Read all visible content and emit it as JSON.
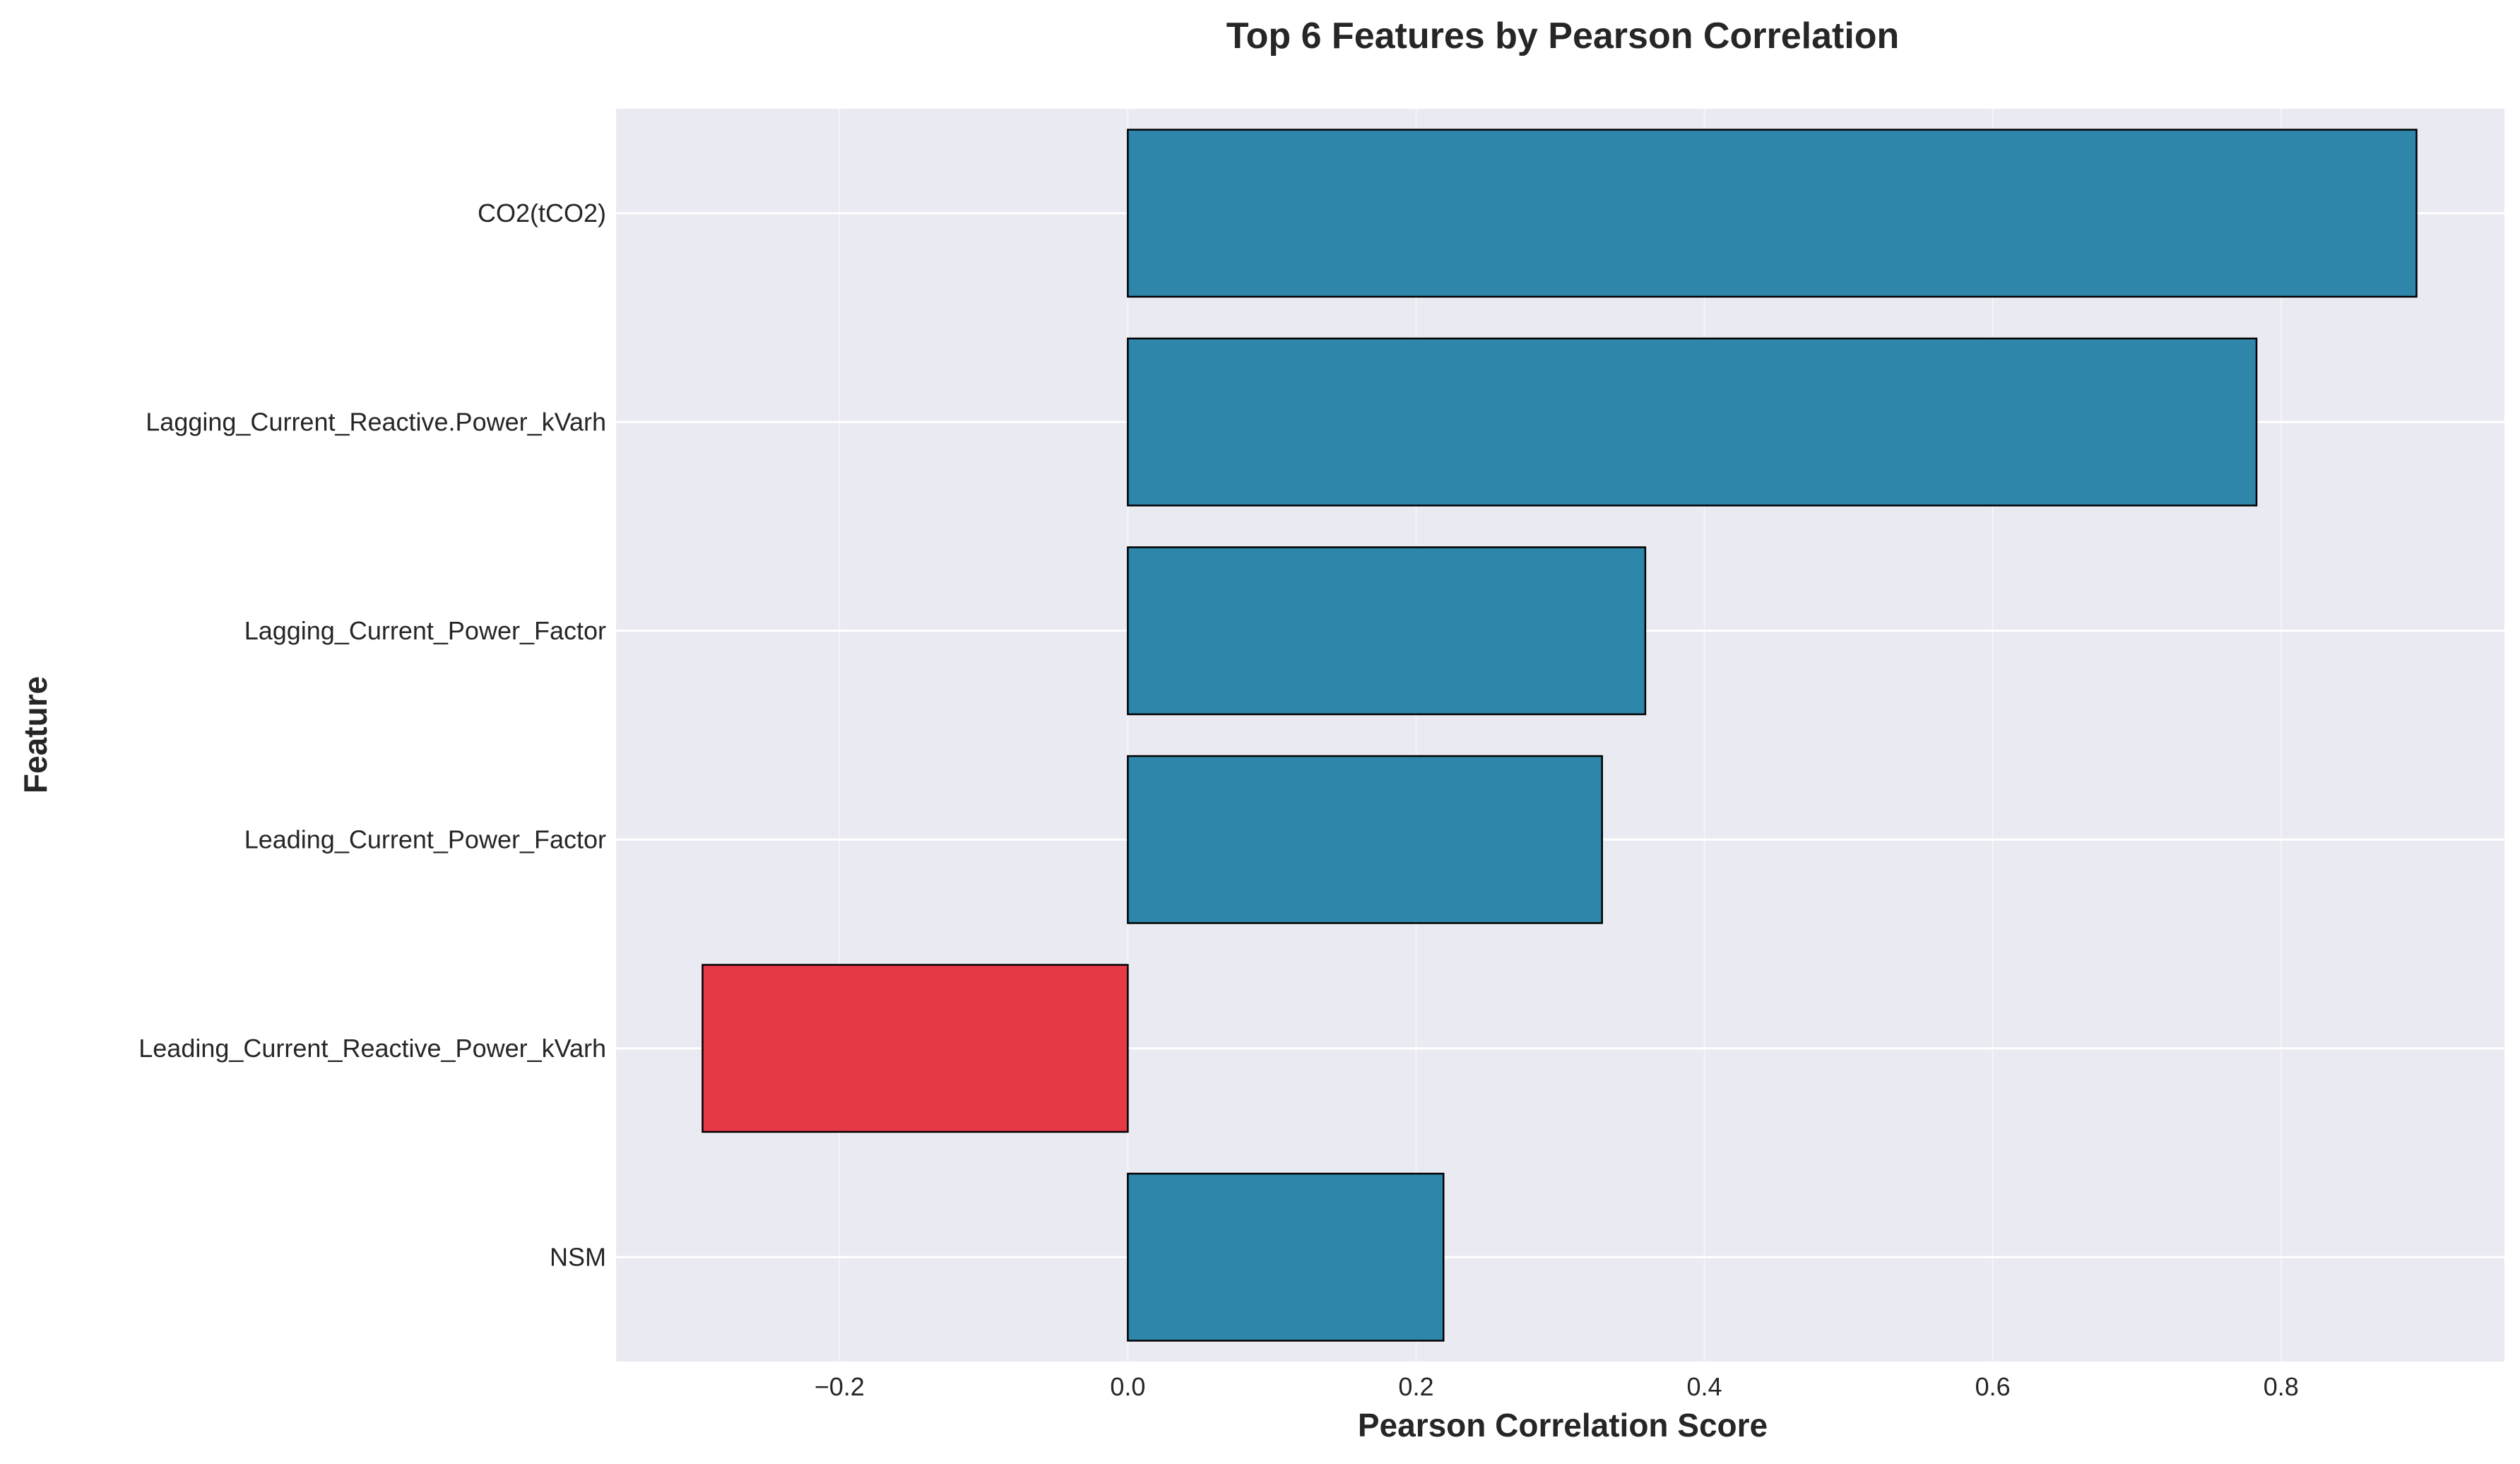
{
  "chart_data": {
    "type": "bar",
    "orientation": "horizontal",
    "title": "Top 6 Features by Pearson Correlation",
    "xlabel": "Pearson Correlation Score",
    "ylabel": "Feature",
    "categories": [
      "CO2(tCO2)",
      "Lagging_Current_Reactive.Power_kVarh",
      "Lagging_Current_Power_Factor",
      "Leading_Current_Power_Factor",
      "Leading_Current_Reactive_Power_kVarh",
      "NSM"
    ],
    "values": [
      0.894,
      0.783,
      0.359,
      0.329,
      -0.295,
      0.219
    ],
    "xlim": [
      -0.355,
      0.955
    ],
    "xticks": [
      -0.2,
      0.0,
      0.2,
      0.4,
      0.6,
      0.8
    ],
    "xtick_labels": [
      "−0.2",
      "0.0",
      "0.2",
      "0.4",
      "0.6",
      "0.8"
    ],
    "grid": true,
    "colors": {
      "positive": "#2e86ab",
      "negative": "#e63946",
      "background": "#eaeaf2",
      "grid": "#ffffff",
      "edge": "#000000"
    }
  }
}
